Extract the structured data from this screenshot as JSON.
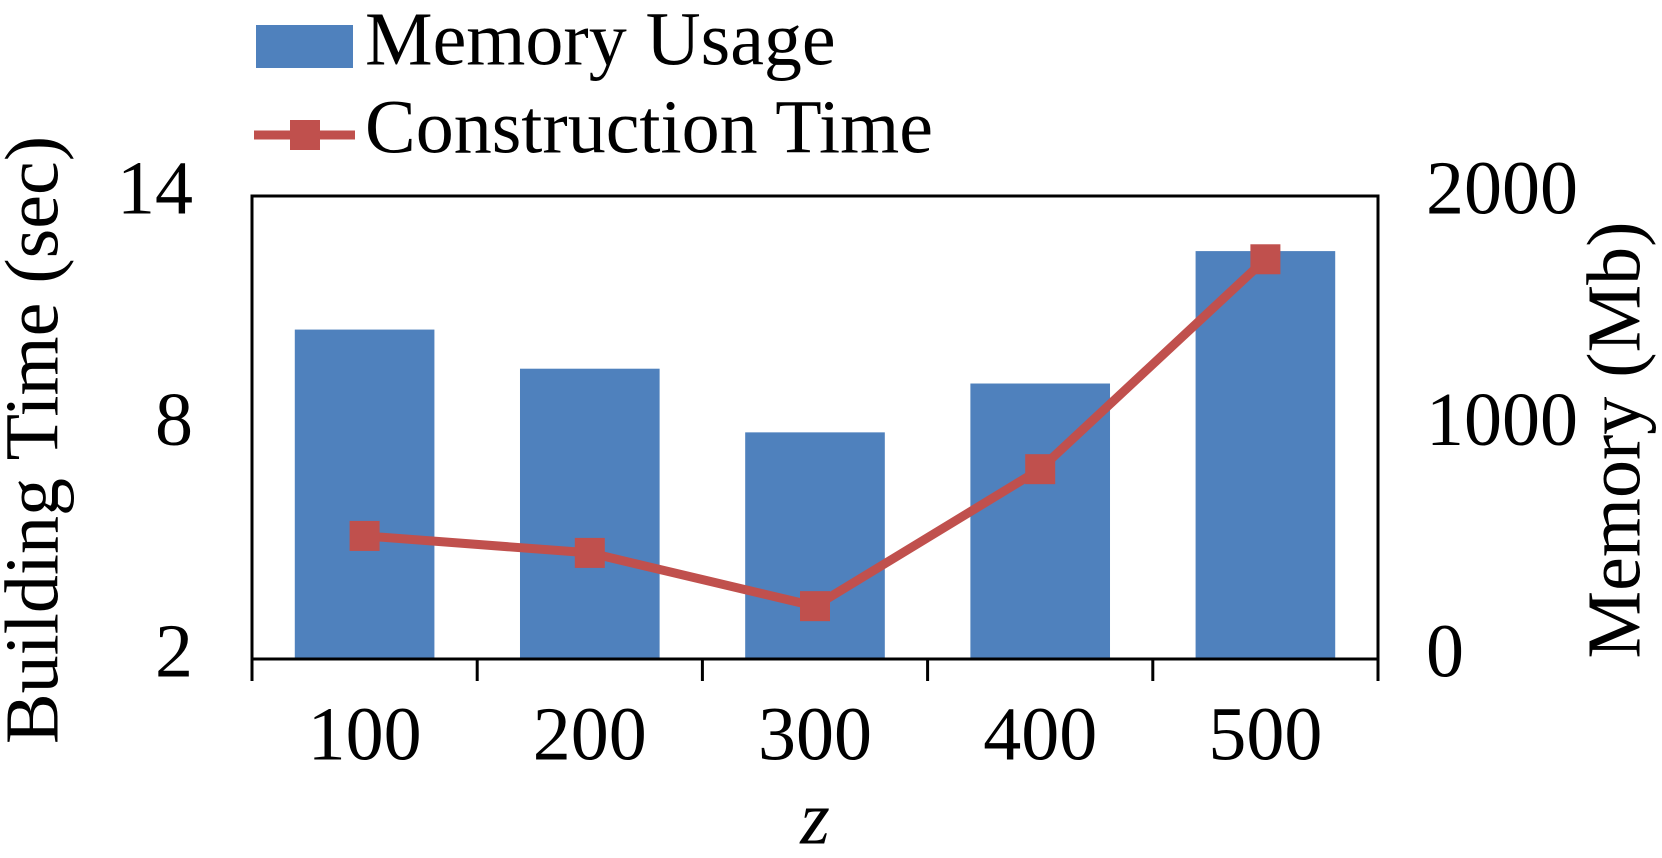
{
  "chart_data": {
    "type": "bar",
    "categories": [
      "100",
      "200",
      "300",
      "400",
      "500"
    ],
    "x_label": "z",
    "y_label": "Building Time (sec)",
    "y2_label": "Memory (Mb)",
    "ylim": [
      2,
      14
    ],
    "yticks": [
      2,
      8,
      14
    ],
    "y2lim": [
      0,
      2000
    ],
    "y2ticks": [
      0,
      1000,
      2000
    ],
    "series": [
      {
        "name": "Memory Usage",
        "type": "bar",
        "axis": "y2",
        "color": "#4f81bd",
        "values": [
          1423,
          1254,
          979,
          1190,
          1762
        ]
      },
      {
        "name": "Construction Time",
        "type": "line",
        "axis": "y",
        "color": "#c0504d",
        "values": [
          5.19,
          4.75,
          3.37,
          6.92,
          12.36
        ]
      }
    ]
  }
}
